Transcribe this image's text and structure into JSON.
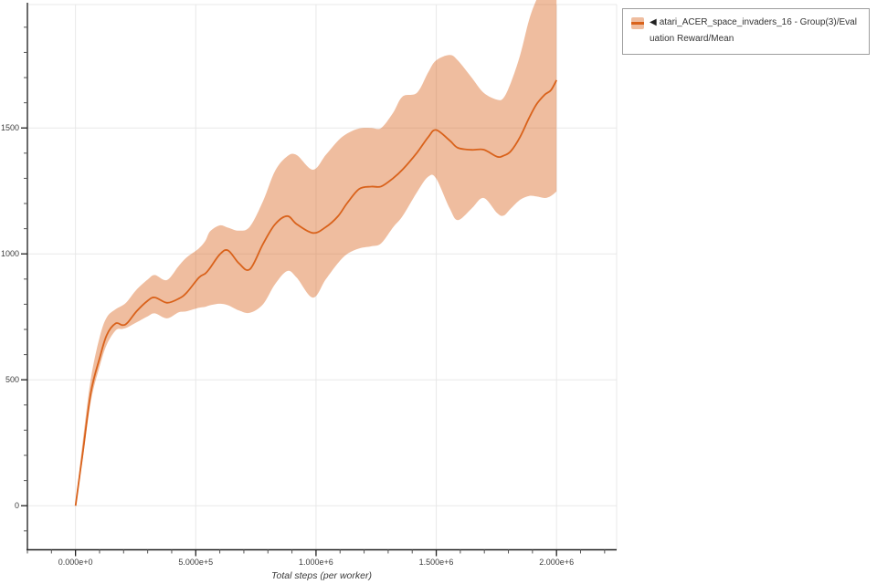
{
  "legend": {
    "marker": "◀",
    "label": "atari_ACER_space_invaders_16 - Group(3)/Evaluation Reward/Mean"
  },
  "colors": {
    "line": "#d9621b",
    "band": "rgba(217,98,27,0.42)",
    "grid": "#e8e8e8",
    "spine_left": "#6b6b6b",
    "spine_bottom": "#1f1f1f",
    "tick_major": "#222222",
    "tick_minor": "#555555",
    "legend_border": "#9e9e9e"
  },
  "chart_data": {
    "type": "line",
    "title": "",
    "xlabel": "Total steps (per worker)",
    "ylabel": "",
    "grid": true,
    "legend_position": "top-right-outside",
    "x_domain": [
      -200000,
      2250000
    ],
    "y_domain": [
      -175,
      1990
    ],
    "x_tick_values": [
      0,
      500000,
      1000000,
      1500000,
      2000000
    ],
    "x_tick_labels": [
      "0.000e+0",
      "5.000e+5",
      "1.000e+6",
      "1.500e+6",
      "2.000e+6"
    ],
    "x_minor_step": 100000,
    "y_tick_values": [
      0,
      500,
      1000,
      1500
    ],
    "y_tick_labels": [
      "0",
      "500",
      "1000",
      "1500"
    ],
    "y_minor_step": 100,
    "series": [
      {
        "name": "atari_ACER_space_invaders_16 - Group(3)/Evaluation Reward/Mean",
        "x": [
          0,
          30000,
          64000,
          100000,
          130000,
          167000,
          195000,
          216000,
          254000,
          300000,
          330000,
          380000,
          429000,
          462000,
          513000,
          540000,
          560000,
          600000,
          634000,
          680000,
          725000,
          780000,
          830000,
          881000,
          920000,
          987000,
          1040000,
          1090000,
          1130000,
          1180000,
          1230000,
          1271000,
          1320000,
          1360000,
          1420000,
          1466000,
          1499000,
          1556000,
          1590000,
          1647000,
          1697000,
          1753000,
          1780000,
          1810000,
          1849000,
          1886000,
          1917000,
          1951000,
          1977000,
          2000000
        ],
        "mean": [
          0,
          210,
          450,
          585,
          678,
          724,
          717,
          726,
          772,
          814,
          827,
          806,
          822,
          846,
          906,
          922,
          945,
          998,
          1014,
          962,
          939,
          1040,
          1118,
          1150,
          1118,
          1083,
          1106,
          1148,
          1202,
          1258,
          1267,
          1268,
          1300,
          1335,
          1402,
          1463,
          1492,
          1450,
          1421,
          1413,
          1414,
          1386,
          1390,
          1408,
          1465,
          1540,
          1594,
          1632,
          1650,
          1690
        ],
        "lower": [
          0,
          185,
          415,
          552,
          640,
          696,
          702,
          708,
          728,
          752,
          764,
          744,
          768,
          772,
          786,
          790,
          796,
          802,
          796,
          775,
          766,
          800,
          880,
          932,
          905,
          826,
          898,
          962,
          1000,
          1022,
          1030,
          1042,
          1105,
          1150,
          1245,
          1306,
          1300,
          1180,
          1134,
          1180,
          1222,
          1162,
          1152,
          1180,
          1215,
          1230,
          1228,
          1222,
          1230,
          1248
        ],
        "upper": [
          0,
          255,
          505,
          668,
          748,
          780,
          795,
          812,
          858,
          898,
          916,
          896,
          952,
          986,
          1022,
          1052,
          1090,
          1113,
          1104,
          1092,
          1108,
          1210,
          1330,
          1388,
          1392,
          1334,
          1392,
          1448,
          1478,
          1498,
          1500,
          1500,
          1560,
          1625,
          1640,
          1720,
          1768,
          1790,
          1768,
          1700,
          1640,
          1612,
          1620,
          1680,
          1790,
          1930,
          2010,
          2080,
          2120,
          2150
        ]
      }
    ]
  }
}
